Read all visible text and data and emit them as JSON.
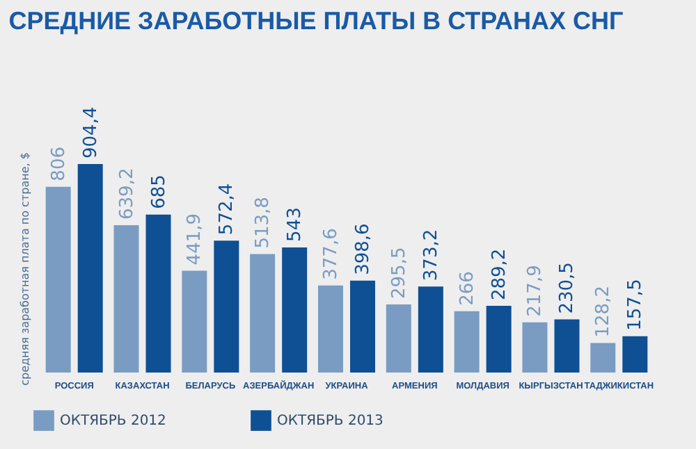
{
  "chart_data": {
    "type": "bar",
    "title": "СРЕДНИЕ ЗАРАБОТНЫЕ ПЛАТЫ В СТРАНАХ СНГ",
    "ylabel": "средняя заработная плата по стране, $",
    "categories": [
      "РОССИЯ",
      "КАЗАХСТАН",
      "БЕЛАРУСЬ",
      "АЗЕРБАЙДЖАН",
      "УКРАИНА",
      "АРМЕНИЯ",
      "МОЛДАВИЯ",
      "КЫРГЫЗСТАН",
      "ТАДЖИКИСТАН"
    ],
    "series": [
      {
        "name": "ОКТЯБРЬ 2012",
        "color": "#7a9cc2",
        "values": [
          806,
          639.2,
          441.9,
          513.8,
          377.6,
          295.5,
          266,
          217.9,
          128.2
        ],
        "value_labels": [
          "806",
          "639,2",
          "441,9",
          "513,8",
          "377,6",
          "295,5",
          "266",
          "217,9",
          "128,2"
        ]
      },
      {
        "name": "ОКТЯБРЬ 2013",
        "color": "#0f4f94",
        "values": [
          904.4,
          685,
          572.4,
          543,
          398.6,
          373.2,
          289.2,
          230.5,
          157.5
        ],
        "value_labels": [
          "904,4",
          "685",
          "572,4",
          "543",
          "398,6",
          "373,2",
          "289,2",
          "230,5",
          "157,5"
        ]
      }
    ],
    "legend": "bottom",
    "grid": false
  }
}
